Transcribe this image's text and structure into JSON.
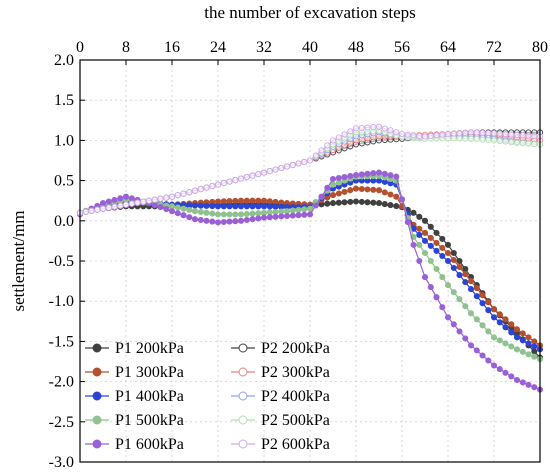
{
  "chart_data": {
    "type": "line",
    "title": "",
    "xlabel": "the number of excavation steps",
    "ylabel": "settlement/mm",
    "xlim": [
      0,
      80
    ],
    "ylim": [
      -3.0,
      2.0
    ],
    "x_axis_position": "top",
    "x_ticks": [
      "0",
      "8",
      "16",
      "24",
      "32",
      "40",
      "48",
      "56",
      "64",
      "72",
      "80"
    ],
    "y_ticks": [
      "2.0",
      "1.5",
      "1.0",
      "0.5",
      "0.0",
      "-0.5",
      "-1.0",
      "-1.5",
      "-2.0",
      "-2.5",
      "-3.0"
    ],
    "grid": true,
    "legend_position": "bottom-left",
    "legend_columns": 2,
    "series": [
      {
        "name": "P1 200kPa",
        "color": "#404040",
        "marker": "filled",
        "points": [
          [
            0,
            0.1
          ],
          [
            4,
            0.15
          ],
          [
            8,
            0.18
          ],
          [
            12,
            0.18
          ],
          [
            16,
            0.18
          ],
          [
            20,
            0.19
          ],
          [
            24,
            0.2
          ],
          [
            28,
            0.21
          ],
          [
            32,
            0.21
          ],
          [
            36,
            0.2
          ],
          [
            40,
            0.19
          ],
          [
            44,
            0.22
          ],
          [
            48,
            0.24
          ],
          [
            52,
            0.22
          ],
          [
            56,
            0.17
          ],
          [
            58,
            0.1
          ],
          [
            60,
            0.0
          ],
          [
            64,
            -0.3
          ],
          [
            68,
            -0.7
          ],
          [
            72,
            -1.1
          ],
          [
            76,
            -1.4
          ],
          [
            80,
            -1.7
          ]
        ]
      },
      {
        "name": "P1 300kPa",
        "color": "#b5502e",
        "marker": "filled",
        "points": [
          [
            0,
            0.1
          ],
          [
            4,
            0.18
          ],
          [
            8,
            0.22
          ],
          [
            12,
            0.22
          ],
          [
            16,
            0.2
          ],
          [
            20,
            0.22
          ],
          [
            24,
            0.24
          ],
          [
            28,
            0.25
          ],
          [
            32,
            0.25
          ],
          [
            36,
            0.22
          ],
          [
            40,
            0.2
          ],
          [
            44,
            0.32
          ],
          [
            48,
            0.4
          ],
          [
            52,
            0.38
          ],
          [
            55,
            0.3
          ],
          [
            58,
            -0.05
          ],
          [
            60,
            -0.15
          ],
          [
            64,
            -0.4
          ],
          [
            68,
            -0.75
          ],
          [
            72,
            -1.1
          ],
          [
            76,
            -1.35
          ],
          [
            80,
            -1.55
          ]
        ]
      },
      {
        "name": "P1 400kPa",
        "color": "#2a44d6",
        "marker": "filled",
        "points": [
          [
            0,
            0.1
          ],
          [
            4,
            0.18
          ],
          [
            8,
            0.24
          ],
          [
            12,
            0.22
          ],
          [
            16,
            0.2
          ],
          [
            20,
            0.19
          ],
          [
            24,
            0.18
          ],
          [
            28,
            0.18
          ],
          [
            32,
            0.18
          ],
          [
            36,
            0.17
          ],
          [
            40,
            0.17
          ],
          [
            44,
            0.4
          ],
          [
            48,
            0.5
          ],
          [
            52,
            0.5
          ],
          [
            55,
            0.45
          ],
          [
            58,
            -0.1
          ],
          [
            60,
            -0.25
          ],
          [
            64,
            -0.5
          ],
          [
            68,
            -0.85
          ],
          [
            72,
            -1.2
          ],
          [
            76,
            -1.45
          ],
          [
            80,
            -1.6
          ]
        ]
      },
      {
        "name": "P1 500kPa",
        "color": "#8fc28f",
        "marker": "filled",
        "points": [
          [
            0,
            0.1
          ],
          [
            4,
            0.2
          ],
          [
            8,
            0.26
          ],
          [
            12,
            0.22
          ],
          [
            16,
            0.18
          ],
          [
            20,
            0.12
          ],
          [
            24,
            0.08
          ],
          [
            28,
            0.08
          ],
          [
            32,
            0.1
          ],
          [
            36,
            0.12
          ],
          [
            40,
            0.15
          ],
          [
            44,
            0.45
          ],
          [
            48,
            0.55
          ],
          [
            52,
            0.56
          ],
          [
            55,
            0.5
          ],
          [
            58,
            -0.2
          ],
          [
            60,
            -0.4
          ],
          [
            64,
            -0.8
          ],
          [
            68,
            -1.15
          ],
          [
            72,
            -1.45
          ],
          [
            76,
            -1.6
          ],
          [
            80,
            -1.72
          ]
        ]
      },
      {
        "name": "P1 600kPa",
        "color": "#9a61d6",
        "marker": "filled",
        "points": [
          [
            0,
            0.08
          ],
          [
            4,
            0.22
          ],
          [
            8,
            0.3
          ],
          [
            12,
            0.22
          ],
          [
            16,
            0.12
          ],
          [
            20,
            0.02
          ],
          [
            24,
            -0.02
          ],
          [
            28,
            0.0
          ],
          [
            32,
            0.04
          ],
          [
            36,
            0.06
          ],
          [
            40,
            0.08
          ],
          [
            44,
            0.52
          ],
          [
            48,
            0.57
          ],
          [
            52,
            0.6
          ],
          [
            55,
            0.55
          ],
          [
            58,
            -0.3
          ],
          [
            60,
            -0.7
          ],
          [
            64,
            -1.2
          ],
          [
            68,
            -1.55
          ],
          [
            72,
            -1.8
          ],
          [
            76,
            -1.98
          ],
          [
            80,
            -2.1
          ]
        ]
      },
      {
        "name": "P2 200kPa",
        "color": "#404040",
        "marker": "hollow",
        "points": [
          [
            0,
            0.1
          ],
          [
            8,
            0.2
          ],
          [
            16,
            0.3
          ],
          [
            24,
            0.45
          ],
          [
            32,
            0.6
          ],
          [
            40,
            0.75
          ],
          [
            44,
            0.85
          ],
          [
            48,
            0.95
          ],
          [
            52,
            1.0
          ],
          [
            56,
            1.02
          ],
          [
            60,
            1.05
          ],
          [
            64,
            1.08
          ],
          [
            68,
            1.1
          ],
          [
            72,
            1.1
          ],
          [
            76,
            1.1
          ],
          [
            80,
            1.1
          ]
        ]
      },
      {
        "name": "P2 300kPa",
        "color": "#e8837a",
        "marker": "hollow",
        "points": [
          [
            0,
            0.1
          ],
          [
            8,
            0.2
          ],
          [
            16,
            0.3
          ],
          [
            24,
            0.45
          ],
          [
            32,
            0.6
          ],
          [
            40,
            0.75
          ],
          [
            44,
            0.88
          ],
          [
            48,
            1.0
          ],
          [
            52,
            1.05
          ],
          [
            56,
            1.05
          ],
          [
            60,
            1.07
          ],
          [
            64,
            1.08
          ],
          [
            68,
            1.08
          ],
          [
            72,
            1.06
          ],
          [
            76,
            1.03
          ],
          [
            80,
            1.0
          ]
        ]
      },
      {
        "name": "P2 400kPa",
        "color": "#8fa2f0",
        "marker": "hollow",
        "points": [
          [
            0,
            0.1
          ],
          [
            8,
            0.2
          ],
          [
            16,
            0.3
          ],
          [
            24,
            0.45
          ],
          [
            32,
            0.6
          ],
          [
            40,
            0.75
          ],
          [
            44,
            0.92
          ],
          [
            48,
            1.05
          ],
          [
            52,
            1.1
          ],
          [
            56,
            1.05
          ],
          [
            60,
            1.05
          ],
          [
            64,
            1.06
          ],
          [
            68,
            1.05
          ],
          [
            72,
            1.02
          ],
          [
            76,
            0.98
          ],
          [
            80,
            0.95
          ]
        ]
      },
      {
        "name": "P2 500kPa",
        "color": "#b5ddb0",
        "marker": "hollow",
        "points": [
          [
            0,
            0.1
          ],
          [
            8,
            0.2
          ],
          [
            16,
            0.3
          ],
          [
            24,
            0.45
          ],
          [
            32,
            0.6
          ],
          [
            40,
            0.75
          ],
          [
            44,
            0.95
          ],
          [
            48,
            1.1
          ],
          [
            52,
            1.12
          ],
          [
            56,
            1.04
          ],
          [
            60,
            1.02
          ],
          [
            64,
            1.03
          ],
          [
            68,
            1.02
          ],
          [
            72,
            1.0
          ],
          [
            76,
            0.97
          ],
          [
            80,
            0.95
          ]
        ]
      },
      {
        "name": "P2 600kPa",
        "color": "#d2a6f0",
        "marker": "hollow",
        "points": [
          [
            0,
            0.1
          ],
          [
            8,
            0.2
          ],
          [
            16,
            0.3
          ],
          [
            24,
            0.45
          ],
          [
            32,
            0.6
          ],
          [
            40,
            0.75
          ],
          [
            44,
            1.0
          ],
          [
            48,
            1.15
          ],
          [
            52,
            1.17
          ],
          [
            56,
            1.08
          ],
          [
            60,
            1.05
          ],
          [
            64,
            1.08
          ],
          [
            68,
            1.1
          ],
          [
            72,
            1.09
          ],
          [
            76,
            1.07
          ],
          [
            80,
            1.05
          ]
        ]
      }
    ]
  }
}
